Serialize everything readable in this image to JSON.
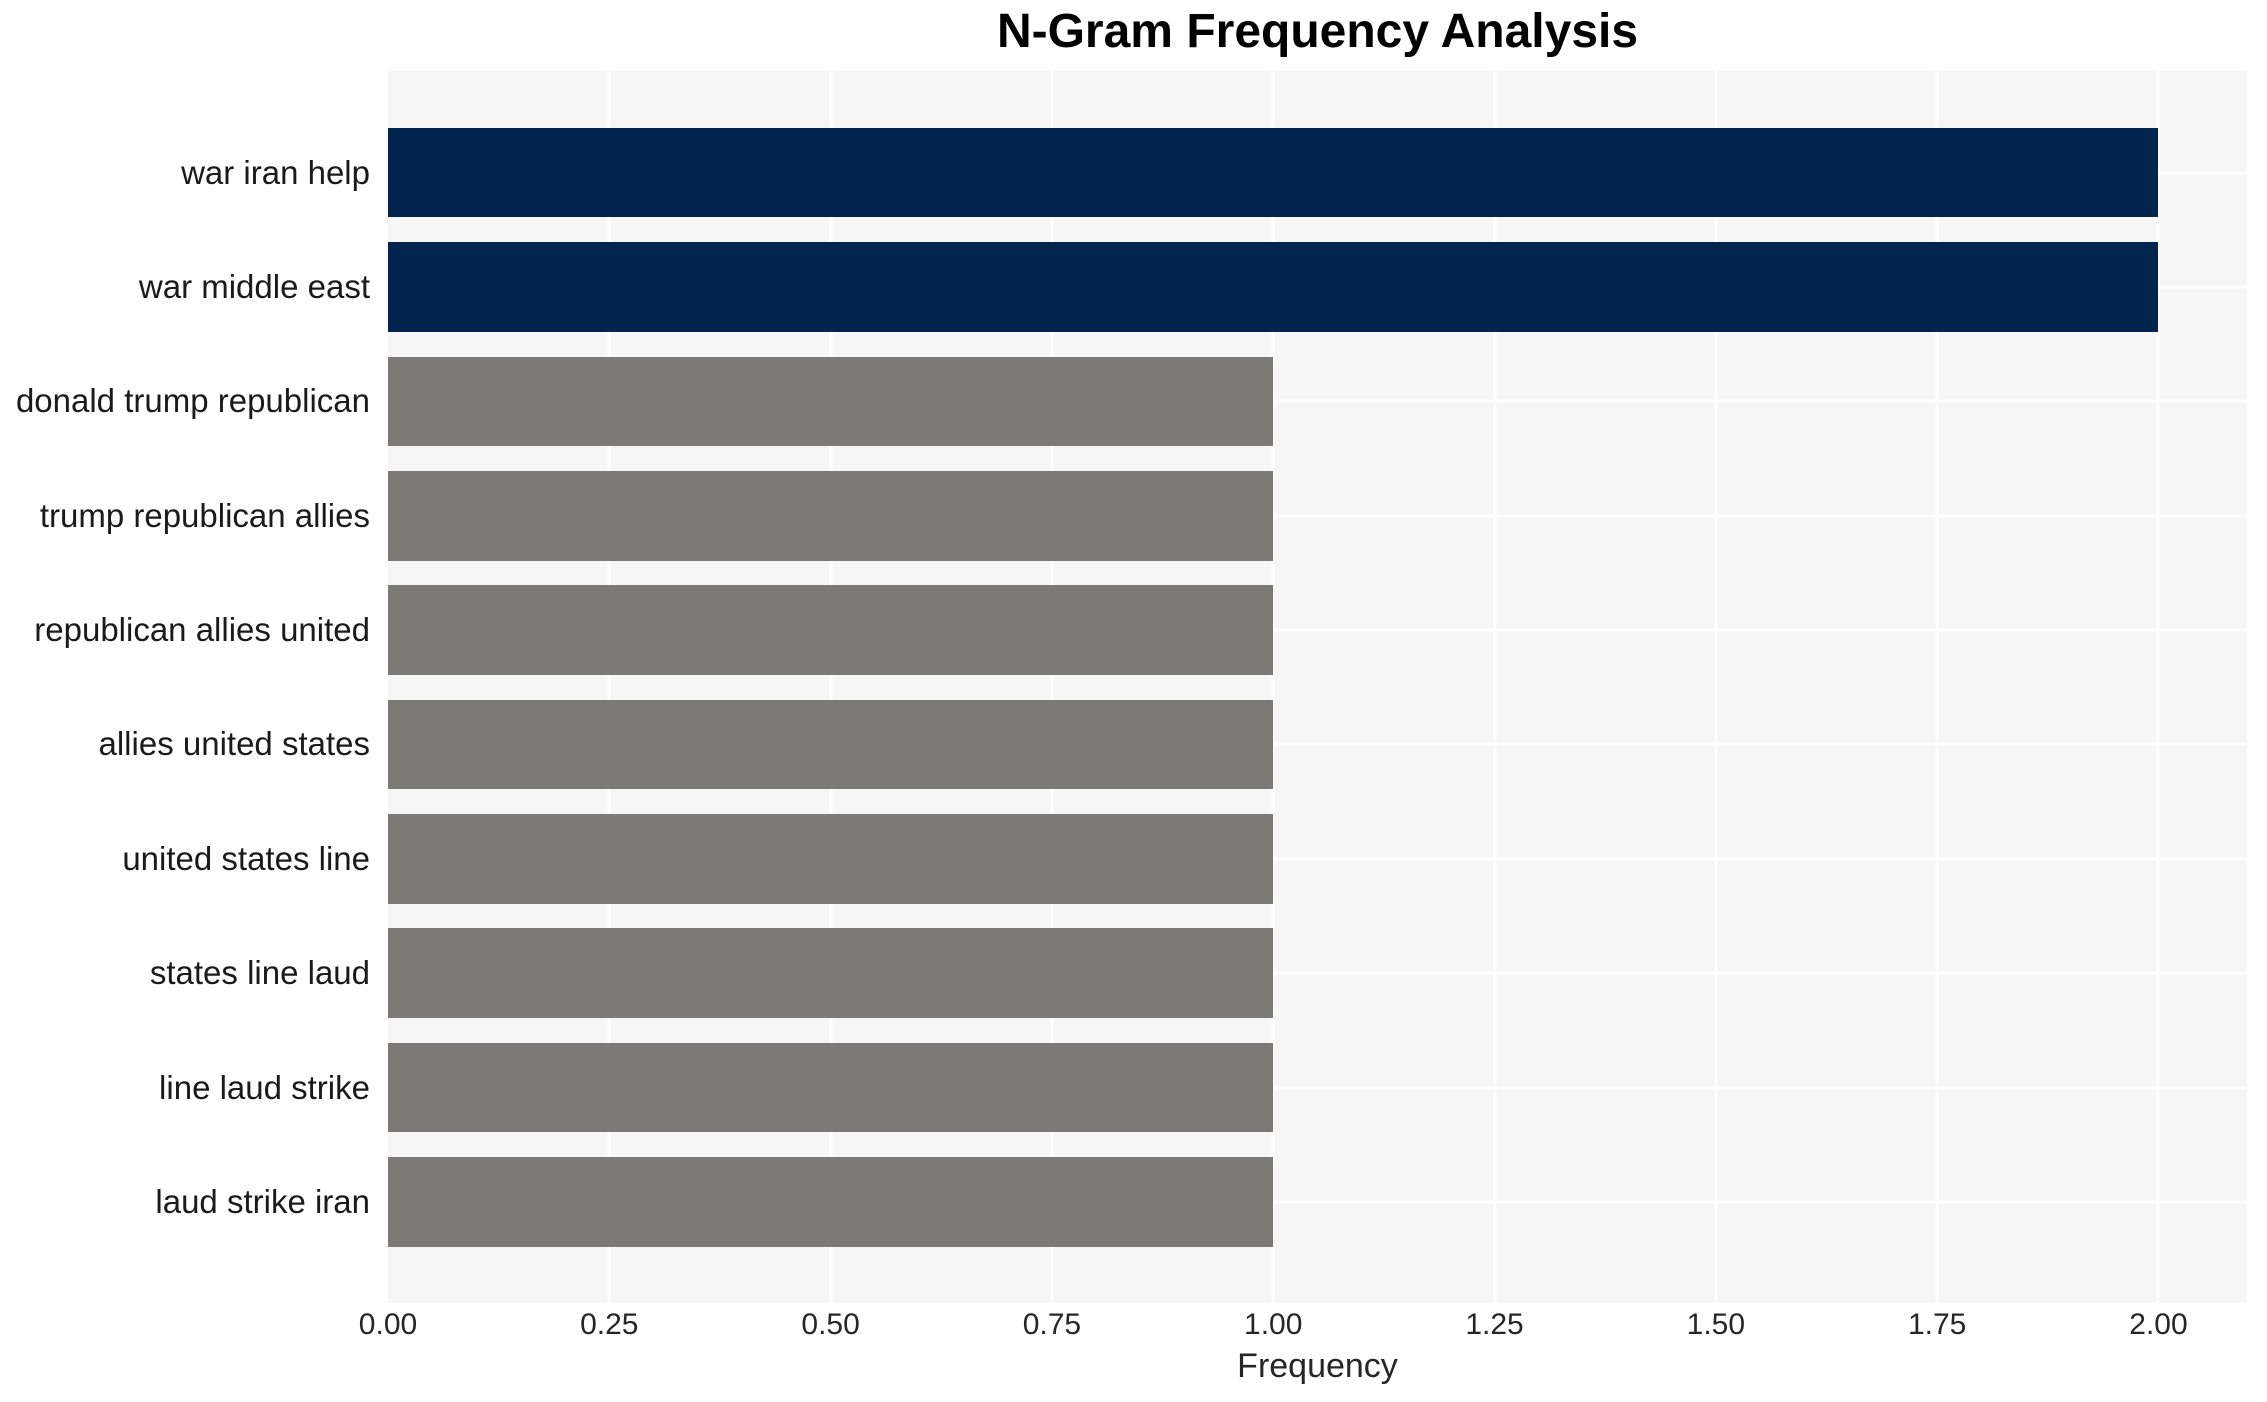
{
  "title": "N-Gram Frequency Analysis",
  "chart_data": {
    "type": "bar",
    "orientation": "horizontal",
    "title": "N-Gram Frequency Analysis",
    "xlabel": "Frequency",
    "ylabel": "",
    "categories": [
      "war iran help",
      "war middle east",
      "donald trump republican",
      "trump republican allies",
      "republican allies united",
      "allies united states",
      "united states line",
      "states line laud",
      "line laud strike",
      "laud strike iran"
    ],
    "values": [
      2,
      2,
      1,
      1,
      1,
      1,
      1,
      1,
      1,
      1
    ],
    "bar_colors": [
      "#01254d",
      "#01254d",
      "#7b7a77",
      "#7b7a77",
      "#7b7a77",
      "#7b7a77",
      "#7b7a77",
      "#7b7a77",
      "#7b7a77",
      "#7b7a77"
    ],
    "xlim": [
      0,
      2.1
    ],
    "xtick_values": [
      0,
      0.25,
      0.5,
      0.75,
      1.0,
      1.25,
      1.5,
      1.75,
      2.0
    ],
    "xtick_labels": [
      "0.00",
      "0.25",
      "0.50",
      "0.75",
      "1.00",
      "1.25",
      "1.50",
      "1.75",
      "2.00"
    ],
    "grid": "white gridlines: vertical at x ticks, horizontal at category centers, drawn under bars",
    "legend": "none",
    "colors": {
      "highlight_bar": "#01254d",
      "default_bar": "#7b7a77",
      "plot_background": "#f7f6f7",
      "figure_background": "#ffffff",
      "grid_line": "#ffffff",
      "title_color": "#000000",
      "tick_label_color": "#262626",
      "category_label_color": "#1a1a1a"
    }
  }
}
